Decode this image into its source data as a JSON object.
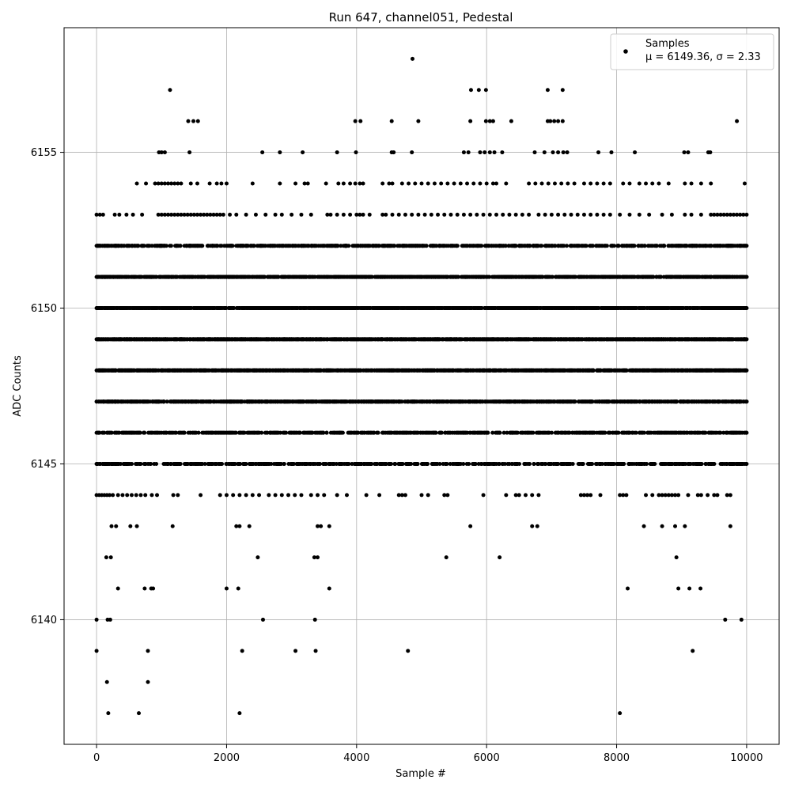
{
  "chart_data": {
    "type": "scatter",
    "title": "Run 647, channel051, Pedestal",
    "xlabel": "Sample #",
    "ylabel": "ADC Counts",
    "xlim": [
      -500,
      10500
    ],
    "ylim": [
      6136,
      6159
    ],
    "xticks": [
      0,
      2000,
      4000,
      6000,
      8000,
      10000
    ],
    "yticks": [
      6140,
      6145,
      6150,
      6155
    ],
    "grid": true,
    "legend_position": "top-right",
    "marker_color": "#000000",
    "series": [
      {
        "name": "Samples",
        "legend_stats": "μ = 6149.36, σ = 2.33",
        "n_samples": 10000,
        "mean": 6149.36,
        "sigma": 2.33,
        "bands": [
          {
            "y": 6153,
            "x": [
              0,
              50,
              100,
              280,
              350,
              460,
              560,
              700,
              950,
              1000,
              1050,
              1100,
              1150,
              1200,
              1250,
              1300,
              1350,
              1400,
              1450,
              1500,
              1550,
              1600,
              1650,
              1700,
              1750,
              1800,
              1850,
              1900,
              1950,
              2050,
              2150,
              2300,
              2450,
              2600,
              2750,
              2850,
              3000,
              3150,
              3300,
              3550,
              3600,
              3700,
              3800,
              3900,
              4000,
              4050,
              4100,
              4200,
              4400,
              4450,
              4550,
              4650,
              4750,
              4850,
              4950,
              5050,
              5150,
              5250,
              5350,
              5450,
              5550,
              5650,
              5750,
              5850,
              5950,
              6050,
              6150,
              6250,
              6350,
              6450,
              6550,
              6650,
              6800,
              6900,
              7000,
              7100,
              7200,
              7300,
              7400,
              7500,
              7600,
              7700,
              7800,
              7900,
              8050,
              8200,
              8350,
              8500,
              8700,
              8850,
              9050,
              9150,
              9300,
              9450,
              9500,
              9550,
              9600,
              9650,
              9700,
              9750,
              9800,
              9850,
              9900,
              9950,
              10000
            ]
          },
          {
            "y": 6144,
            "x": [
              0,
              40,
              80,
              120,
              160,
              200,
              250,
              330,
              400,
              470,
              540,
              610,
              680,
              750,
              850,
              930,
              1180,
              1250,
              1600,
              1900,
              2000,
              2100,
              2200,
              2300,
              2400,
              2500,
              2650,
              2750,
              2850,
              2950,
              3050,
              3150,
              3300,
              3400,
              3500,
              3700,
              3850,
              4150,
              4350,
              4650,
              4700,
              4750,
              5000,
              5100,
              5350,
              5400,
              5950,
              6300,
              6450,
              6500,
              6600,
              6700,
              6800,
              7450,
              7500,
              7550,
              7600,
              7750,
              8050,
              8100,
              8150,
              8450,
              8550,
              8650,
              8700,
              8750,
              8800,
              8850,
              8900,
              8950,
              9100,
              9250,
              9300,
              9400,
              9500,
              9550,
              9700,
              9750
            ]
          },
          {
            "y": 6143,
            "x": [
              230,
              300,
              520,
              620,
              1170,
              2150,
              2200,
              2350,
              3400,
              3450,
              3580,
              5750,
              6700,
              6780,
              8420,
              8700,
              8900,
              9050,
              9750
            ]
          },
          {
            "y": 6142,
            "x": [
              150,
              220,
              2480,
              3350,
              3400,
              5380,
              6200,
              8920
            ]
          },
          {
            "y": 6141,
            "x": [
              330,
              740,
              840,
              870,
              2000,
              2180,
              3580,
              8170,
              8950,
              9120,
              9290
            ]
          },
          {
            "y": 6140,
            "x": [
              0,
              170,
              210,
              2560,
              3360,
              9670,
              9920
            ]
          },
          {
            "y": 6139,
            "x": [
              0,
              790,
              2240,
              3060,
              3370,
              4790,
              9170
            ]
          },
          {
            "y": 6138,
            "x": [
              160,
              790
            ]
          },
          {
            "y": 6137,
            "x": [
              180,
              650,
              2200,
              8050
            ]
          },
          {
            "y": 6154,
            "x": [
              620,
              760,
              900,
              950,
              1000,
              1050,
              1100,
              1150,
              1200,
              1250,
              1300,
              1450,
              1550,
              1740,
              1850,
              1920,
              2000,
              2400,
              2820,
              3060,
              3200,
              3250,
              3530,
              3720,
              3800,
              3900,
              3980,
              4050,
              4100,
              4400,
              4500,
              4550,
              4700,
              4800,
              4900,
              5000,
              5100,
              5200,
              5300,
              5400,
              5500,
              5600,
              5700,
              5800,
              5900,
              6000,
              6100,
              6150,
              6300,
              6650,
              6750,
              6850,
              6950,
              7050,
              7150,
              7250,
              7350,
              7500,
              7600,
              7700,
              7800,
              7900,
              8100,
              8200,
              8350,
              8450,
              8550,
              8650,
              8800,
              9050,
              9150,
              9300,
              9450,
              9970
            ]
          },
          {
            "y": 6155,
            "x": [
              960,
              1000,
              1050,
              1430,
              2550,
              2820,
              3170,
              3700,
              3990,
              4540,
              4570,
              4850,
              5650,
              5720,
              5900,
              5970,
              6050,
              6120,
              6240,
              6740,
              6890,
              7020,
              7100,
              7180,
              7240,
              7720,
              7920,
              8280,
              9040,
              9100,
              9410,
              9440
            ]
          },
          {
            "y": 6156,
            "x": [
              1410,
              1490,
              1560,
              3980,
              4060,
              4540,
              4950,
              5750,
              5990,
              6050,
              6100,
              6380,
              6940,
              6980,
              7040,
              7100,
              7170,
              9850
            ]
          },
          {
            "y": 6157,
            "x": [
              1130,
              5760,
              5880,
              5990,
              6940,
              7170
            ]
          },
          {
            "y": 6158,
            "x": [
              4860
            ]
          }
        ],
        "dense_bands": [
          {
            "y": 6152,
            "x_range": [
              0,
              10000
            ],
            "count": 780
          },
          {
            "y": 6151,
            "x_range": [
              0,
              10000
            ],
            "count": 1320
          },
          {
            "y": 6150,
            "x_range": [
              0,
              10000
            ],
            "count": 1600
          },
          {
            "y": 6149,
            "x_range": [
              0,
              10000
            ],
            "count": 1700
          },
          {
            "y": 6148,
            "x_range": [
              0,
              10000
            ],
            "count": 1600
          },
          {
            "y": 6147,
            "x_range": [
              0,
              10000
            ],
            "count": 1320
          },
          {
            "y": 6146,
            "x_range": [
              0,
              10000
            ],
            "count": 700
          },
          {
            "y": 6145,
            "x_range": [
              0,
              10000
            ],
            "count": 620
          }
        ]
      }
    ]
  }
}
